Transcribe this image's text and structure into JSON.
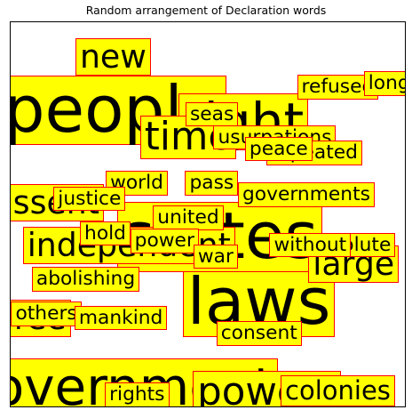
{
  "chart_data": {
    "type": "text-scatter",
    "title": "Random arrangement of Declaration words",
    "xlabel": "",
    "ylabel": "",
    "grid": false,
    "words": [
      {
        "text": "people",
        "x": 0.26,
        "y": 0.77,
        "size": 5
      },
      {
        "text": "right",
        "x": 0.59,
        "y": 0.74,
        "size": 4
      },
      {
        "text": "laws",
        "x": 0.63,
        "y": 0.27,
        "size": 5
      },
      {
        "text": "government",
        "x": 0.27,
        "y": 0.05,
        "size": 4
      },
      {
        "text": "powers",
        "x": 0.65,
        "y": 0.02,
        "size": 3
      },
      {
        "text": "states",
        "x": 0.53,
        "y": 0.44,
        "size": 5
      },
      {
        "text": "independent",
        "x": 0.3,
        "y": 0.42,
        "size": 2.5
      },
      {
        "text": "assent",
        "x": 0.09,
        "y": 0.53,
        "size": 2.5
      },
      {
        "text": "time",
        "x": 0.45,
        "y": 0.7,
        "size": 3
      },
      {
        "text": "large",
        "x": 0.87,
        "y": 0.37,
        "size": 2.5
      },
      {
        "text": "free",
        "x": 0.06,
        "y": 0.23,
        "size": 2.5
      },
      {
        "text": "colonies",
        "x": 0.83,
        "y": 0.04,
        "size": 2
      },
      {
        "text": "new",
        "x": 0.26,
        "y": 0.91,
        "size": 2.5
      },
      {
        "text": "refused",
        "x": 0.83,
        "y": 0.83,
        "size": 1.5
      },
      {
        "text": "long",
        "x": 0.96,
        "y": 0.84,
        "size": 1.5
      },
      {
        "text": "seas",
        "x": 0.51,
        "y": 0.76,
        "size": 1.5
      },
      {
        "text": "usurpations",
        "x": 0.67,
        "y": 0.7,
        "size": 1.5
      },
      {
        "text": "repeated",
        "x": 0.77,
        "y": 0.66,
        "size": 1.5
      },
      {
        "text": "peace",
        "x": 0.68,
        "y": 0.67,
        "size": 1.5
      },
      {
        "text": "world",
        "x": 0.32,
        "y": 0.58,
        "size": 1.5
      },
      {
        "text": "pass",
        "x": 0.51,
        "y": 0.58,
        "size": 1.5
      },
      {
        "text": "governments",
        "x": 0.75,
        "y": 0.55,
        "size": 1.5
      },
      {
        "text": "justice",
        "x": 0.2,
        "y": 0.54,
        "size": 1.5
      },
      {
        "text": "united",
        "x": 0.45,
        "y": 0.49,
        "size": 1.5
      },
      {
        "text": "hold",
        "x": 0.24,
        "y": 0.45,
        "size": 1.5
      },
      {
        "text": "power",
        "x": 0.39,
        "y": 0.43,
        "size": 1.5
      },
      {
        "text": "war",
        "x": 0.52,
        "y": 0.39,
        "size": 1.5
      },
      {
        "text": "absolute",
        "x": 0.86,
        "y": 0.42,
        "size": 1.5
      },
      {
        "text": "without",
        "x": 0.76,
        "y": 0.42,
        "size": 1.5
      },
      {
        "text": "abolishing",
        "x": 0.19,
        "y": 0.33,
        "size": 1.5
      },
      {
        "text": "others",
        "x": 0.09,
        "y": 0.24,
        "size": 1.5
      },
      {
        "text": "mankind",
        "x": 0.28,
        "y": 0.23,
        "size": 1.5
      },
      {
        "text": "consent",
        "x": 0.63,
        "y": 0.19,
        "size": 1.5
      },
      {
        "text": "rights",
        "x": 0.32,
        "y": 0.03,
        "size": 1.5
      }
    ]
  }
}
